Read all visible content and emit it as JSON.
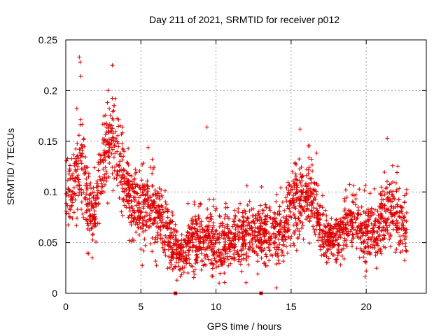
{
  "chart_data": {
    "type": "scatter",
    "title": "Day 211 of 2021, SRMTID for receiver p012",
    "xlabel": "GPS time / hours",
    "ylabel": "SRMTID / TECUs",
    "xlim": [
      0,
      24
    ],
    "ylim": [
      0,
      0.25
    ],
    "x_ticks": [
      0,
      5,
      10,
      15,
      20
    ],
    "x_tick_labels": [
      "0",
      "5",
      "10",
      "15",
      "20"
    ],
    "y_ticks": [
      0,
      0.05,
      0.1,
      0.15,
      0.2,
      0.25
    ],
    "y_tick_labels": [
      "0",
      "0.05",
      "0.1",
      "0.15",
      "0.2",
      "0.25"
    ],
    "grid": true,
    "marker": "+",
    "series": [
      {
        "name": "SRMTID",
        "color": "#dd0000",
        "marker": "+",
        "approx_points": 2600,
        "envelope_hours": [
          0,
          0.5,
          1,
          1.5,
          2,
          2.5,
          3,
          3.5,
          4,
          4.5,
          5,
          5.5,
          6,
          6.5,
          7,
          7.5,
          8,
          8.5,
          9,
          9.5,
          10,
          10.5,
          11,
          11.5,
          12,
          12.5,
          13,
          13.5,
          14,
          14.5,
          15,
          15.5,
          16,
          16.5,
          17,
          17.5,
          18,
          18.5,
          19,
          19.5,
          20,
          20.5,
          21,
          21.5,
          22,
          22.5
        ],
        "envelope_mean": [
          0.095,
          0.1,
          0.135,
          0.09,
          0.08,
          0.135,
          0.16,
          0.14,
          0.105,
          0.085,
          0.085,
          0.09,
          0.085,
          0.065,
          0.055,
          0.04,
          0.045,
          0.055,
          0.05,
          0.055,
          0.05,
          0.05,
          0.05,
          0.055,
          0.055,
          0.06,
          0.06,
          0.055,
          0.055,
          0.065,
          0.08,
          0.095,
          0.1,
          0.095,
          0.06,
          0.055,
          0.05,
          0.065,
          0.075,
          0.065,
          0.055,
          0.065,
          0.07,
          0.08,
          0.08,
          0.065
        ],
        "envelope_spread": [
          0.025,
          0.03,
          0.035,
          0.025,
          0.02,
          0.03,
          0.03,
          0.03,
          0.025,
          0.025,
          0.025,
          0.025,
          0.025,
          0.02,
          0.02,
          0.015,
          0.015,
          0.02,
          0.02,
          0.02,
          0.02,
          0.02,
          0.02,
          0.02,
          0.02,
          0.02,
          0.02,
          0.02,
          0.02,
          0.02,
          0.025,
          0.025,
          0.025,
          0.025,
          0.02,
          0.015,
          0.015,
          0.02,
          0.02,
          0.02,
          0.02,
          0.02,
          0.02,
          0.025,
          0.025,
          0.02
        ],
        "notable_points": [
          {
            "x": 0.9,
            "y": 0.233
          },
          {
            "x": 0.95,
            "y": 0.228
          },
          {
            "x": 1.0,
            "y": 0.214
          },
          {
            "x": 3.1,
            "y": 0.225
          },
          {
            "x": 9.4,
            "y": 0.164
          },
          {
            "x": 15.6,
            "y": 0.162
          },
          {
            "x": 21.4,
            "y": 0.153
          },
          {
            "x": 7.4,
            "y": 0.013
          },
          {
            "x": 20.0,
            "y": 0.022
          }
        ]
      }
    ],
    "baseline_markers": [
      {
        "x": 7.3,
        "y": 0
      },
      {
        "x": 13.0,
        "y": 0
      }
    ]
  }
}
